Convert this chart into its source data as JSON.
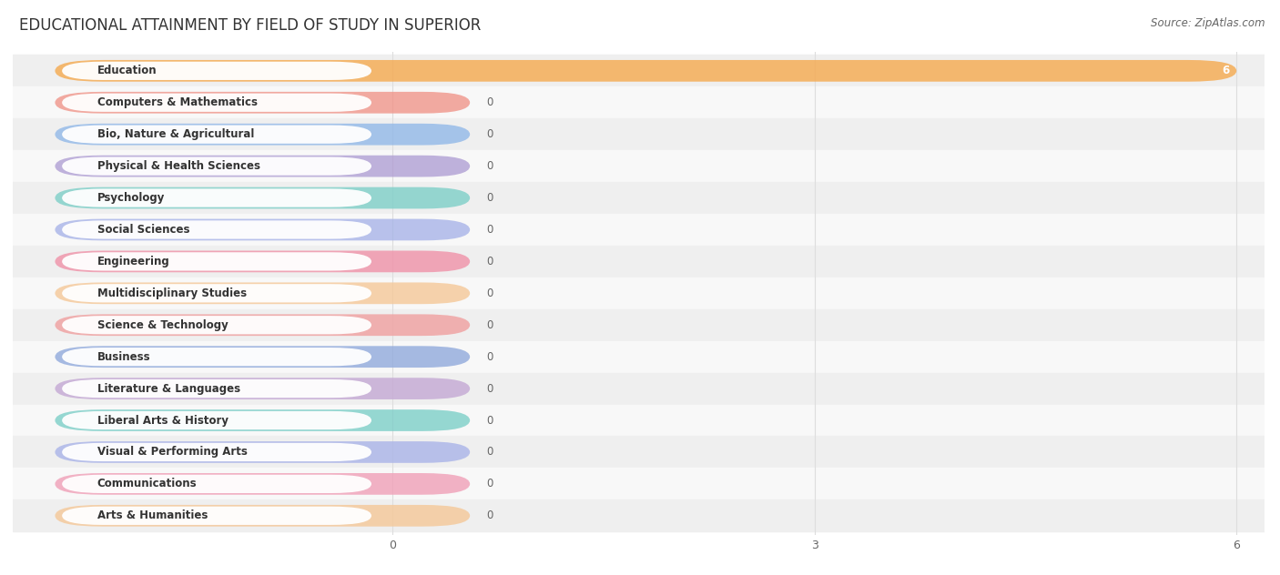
{
  "title": "EDUCATIONAL ATTAINMENT BY FIELD OF STUDY IN SUPERIOR",
  "source": "Source: ZipAtlas.com",
  "categories": [
    "Education",
    "Computers & Mathematics",
    "Bio, Nature & Agricultural",
    "Physical & Health Sciences",
    "Psychology",
    "Social Sciences",
    "Engineering",
    "Multidisciplinary Studies",
    "Science & Technology",
    "Business",
    "Literature & Languages",
    "Liberal Arts & History",
    "Visual & Performing Arts",
    "Communications",
    "Arts & Humanities"
  ],
  "values": [
    6,
    0,
    0,
    0,
    0,
    0,
    0,
    0,
    0,
    0,
    0,
    0,
    0,
    0,
    0
  ],
  "bar_colors": [
    "#f5a94e",
    "#f0958a",
    "#91b8e8",
    "#b09fd4",
    "#7dcfc8",
    "#a8b4e8",
    "#f091a8",
    "#f5c898",
    "#f0a0a0",
    "#91aadc",
    "#c4a8d4",
    "#7dcfc8",
    "#aab4e8",
    "#f0a0b8",
    "#f5c898"
  ],
  "xlim": [
    0,
    6
  ],
  "xticks": [
    0,
    3,
    6
  ],
  "bg_color": "#ffffff",
  "grid_color": "#dddddd",
  "title_fontsize": 12,
  "label_fontsize": 8.5,
  "value_label_fontsize": 8.5,
  "row_colors": [
    "#efefef",
    "#f8f8f8"
  ]
}
